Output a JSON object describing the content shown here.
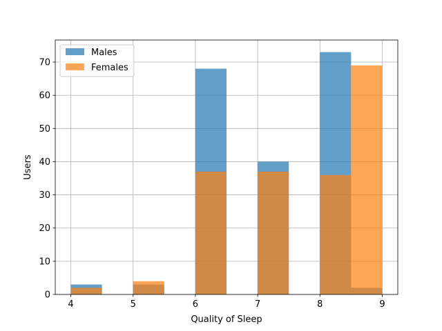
{
  "chart_data": {
    "type": "bar",
    "subtype": "overlapping-histogram",
    "xlabel": "Quality of Sleep",
    "ylabel": "Users",
    "xlim": [
      3.75,
      9.25
    ],
    "ylim": [
      0,
      76.65
    ],
    "xticks": [
      4,
      5,
      6,
      7,
      8,
      9
    ],
    "yticks": [
      0,
      10,
      20,
      30,
      40,
      50,
      60,
      70
    ],
    "grid": true,
    "legend_position": "top-left",
    "series": [
      {
        "name": "Males",
        "color": "#1f77b4",
        "opacity": 0.7,
        "bins": [
          {
            "x0": 4.0,
            "x1": 4.5,
            "value": 3
          },
          {
            "x0": 4.5,
            "x1": 5.0,
            "value": 0
          },
          {
            "x0": 5.0,
            "x1": 5.5,
            "value": 3
          },
          {
            "x0": 5.5,
            "x1": 6.0,
            "value": 0
          },
          {
            "x0": 6.0,
            "x1": 6.5,
            "value": 68
          },
          {
            "x0": 6.5,
            "x1": 7.0,
            "value": 0
          },
          {
            "x0": 7.0,
            "x1": 7.5,
            "value": 40
          },
          {
            "x0": 7.5,
            "x1": 8.0,
            "value": 0
          },
          {
            "x0": 8.0,
            "x1": 8.5,
            "value": 73
          },
          {
            "x0": 8.5,
            "x1": 9.0,
            "value": 2
          }
        ]
      },
      {
        "name": "Females",
        "color": "#ff7f0e",
        "opacity": 0.7,
        "bins": [
          {
            "x0": 4.0,
            "x1": 4.5,
            "value": 2
          },
          {
            "x0": 4.5,
            "x1": 5.0,
            "value": 0
          },
          {
            "x0": 5.0,
            "x1": 5.5,
            "value": 4
          },
          {
            "x0": 5.5,
            "x1": 6.0,
            "value": 0
          },
          {
            "x0": 6.0,
            "x1": 6.5,
            "value": 37
          },
          {
            "x0": 6.5,
            "x1": 7.0,
            "value": 0
          },
          {
            "x0": 7.0,
            "x1": 7.5,
            "value": 37
          },
          {
            "x0": 7.5,
            "x1": 8.0,
            "value": 0
          },
          {
            "x0": 8.0,
            "x1": 8.5,
            "value": 36
          },
          {
            "x0": 8.5,
            "x1": 9.0,
            "value": 69
          }
        ]
      }
    ]
  }
}
